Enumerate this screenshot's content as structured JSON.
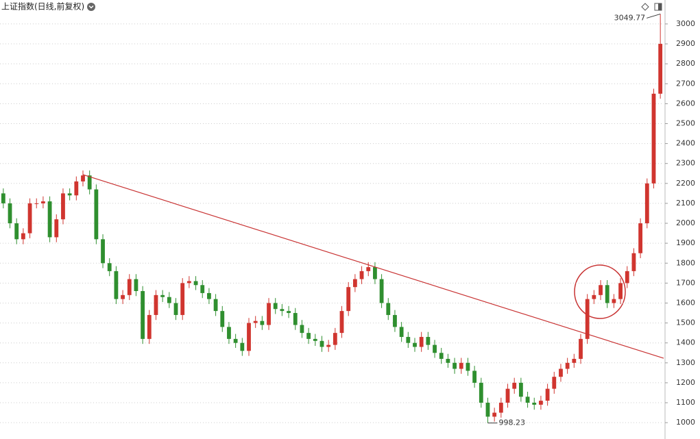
{
  "chart_data": {
    "type": "candlestick",
    "title": "上证指数(日线,前复权)",
    "open": [
      2150,
      2100,
      2000,
      1920,
      1950,
      2100,
      2100,
      2110,
      1930,
      2020,
      2150,
      2140,
      2210,
      2240,
      2170,
      1920,
      1800,
      1760,
      1620,
      1640,
      1720,
      1660,
      1420,
      1540,
      1640,
      1630,
      1600,
      1540,
      1700,
      1710,
      1690,
      1650,
      1620,
      1560,
      1480,
      1420,
      1400,
      1360,
      1500,
      1510,
      1490,
      1600,
      1570,
      1560,
      1550,
      1490,
      1450,
      1420,
      1410,
      1380,
      1390,
      1450,
      1560,
      1680,
      1720,
      1760,
      1780,
      1720,
      1600,
      1540,
      1480,
      1430,
      1400,
      1380,
      1430,
      1390,
      1350,
      1320,
      1300,
      1270,
      1300,
      1260,
      1200,
      1100,
      1030,
      1050,
      1100,
      1170,
      1200,
      1130,
      1100,
      1090,
      1110,
      1170,
      1230,
      1270,
      1300,
      1320,
      1420,
      1620,
      1640,
      1690,
      1600,
      1620,
      1700,
      1760,
      1850,
      2000,
      2200,
      2650
    ],
    "high": [
      2175,
      2125,
      2025,
      1975,
      2125,
      2125,
      2135,
      2135,
      2045,
      2175,
      2175,
      2235,
      2265,
      2265,
      2195,
      1945,
      1825,
      1785,
      1665,
      1745,
      1745,
      1685,
      1565,
      1665,
      1665,
      1655,
      1625,
      1725,
      1735,
      1735,
      1715,
      1675,
      1645,
      1585,
      1505,
      1445,
      1425,
      1525,
      1535,
      1535,
      1625,
      1625,
      1595,
      1585,
      1575,
      1515,
      1475,
      1445,
      1435,
      1415,
      1475,
      1585,
      1705,
      1745,
      1785,
      1805,
      1805,
      1745,
      1625,
      1565,
      1505,
      1455,
      1425,
      1455,
      1455,
      1415,
      1375,
      1345,
      1325,
      1325,
      1325,
      1285,
      1225,
      1125,
      1075,
      1125,
      1195,
      1225,
      1225,
      1155,
      1125,
      1135,
      1195,
      1255,
      1295,
      1325,
      1345,
      1445,
      1645,
      1665,
      1715,
      1715,
      1645,
      1725,
      1785,
      1875,
      2025,
      2225,
      2675,
      3049.77
    ],
    "low": [
      2075,
      1975,
      1895,
      1895,
      1925,
      2075,
      2075,
      1905,
      1905,
      1995,
      2115,
      2115,
      2185,
      2145,
      1895,
      1775,
      1735,
      1595,
      1595,
      1615,
      1635,
      1395,
      1395,
      1515,
      1605,
      1575,
      1515,
      1515,
      1675,
      1665,
      1625,
      1595,
      1535,
      1455,
      1395,
      1375,
      1335,
      1335,
      1475,
      1465,
      1465,
      1545,
      1535,
      1525,
      1465,
      1425,
      1395,
      1385,
      1355,
      1355,
      1365,
      1425,
      1535,
      1655,
      1695,
      1735,
      1695,
      1575,
      1515,
      1455,
      1405,
      1375,
      1355,
      1355,
      1365,
      1325,
      1295,
      1275,
      1245,
      1245,
      1235,
      1175,
      1075,
      998.23,
      1005,
      1025,
      1075,
      1145,
      1105,
      1075,
      1065,
      1065,
      1085,
      1145,
      1205,
      1245,
      1275,
      1295,
      1395,
      1595,
      1615,
      1575,
      1575,
      1595,
      1675,
      1735,
      1825,
      1975,
      2175,
      2625
    ],
    "close": [
      2100,
      2000,
      1920,
      1950,
      2100,
      2100,
      2110,
      1930,
      2020,
      2150,
      2140,
      2210,
      2240,
      2170,
      1920,
      1800,
      1760,
      1620,
      1640,
      1720,
      1660,
      1420,
      1540,
      1640,
      1630,
      1600,
      1540,
      1700,
      1710,
      1690,
      1650,
      1620,
      1560,
      1480,
      1420,
      1400,
      1360,
      1500,
      1510,
      1490,
      1600,
      1570,
      1560,
      1550,
      1490,
      1450,
      1420,
      1410,
      1380,
      1390,
      1450,
      1560,
      1680,
      1720,
      1760,
      1780,
      1720,
      1600,
      1540,
      1480,
      1430,
      1400,
      1380,
      1430,
      1390,
      1350,
      1320,
      1300,
      1270,
      1300,
      1260,
      1200,
      1100,
      1030,
      1050,
      1100,
      1170,
      1200,
      1130,
      1100,
      1090,
      1110,
      1170,
      1230,
      1270,
      1300,
      1320,
      1420,
      1620,
      1640,
      1690,
      1600,
      1620,
      1700,
      1760,
      1850,
      2000,
      2200,
      2650,
      2900
    ],
    "up_color": "#d0352f",
    "down_color": "#2f8f2f",
    "trendline": {
      "x": [
        12,
        99.5
      ],
      "y": [
        2244,
        1323
      ],
      "color": "#c83232"
    },
    "ylim": [
      918,
      3120
    ],
    "yticks": [
      1000,
      1100,
      1200,
      1300,
      1400,
      1500,
      1600,
      1700,
      1800,
      1900,
      2000,
      2100,
      2200,
      2300,
      2400,
      2500,
      2600,
      2700,
      2800,
      2900,
      3000
    ],
    "grid": true
  }
}
